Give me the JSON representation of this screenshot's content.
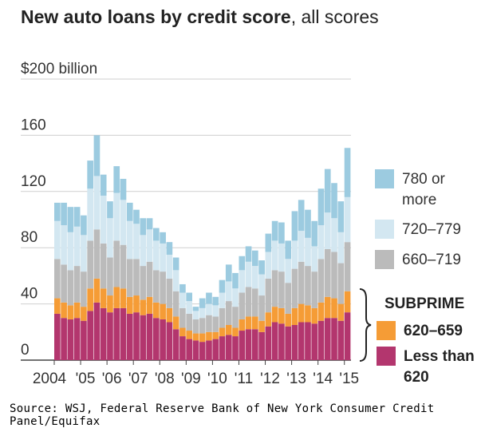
{
  "title": {
    "main": "New auto loans by credit score",
    "sub": ", all scores"
  },
  "chart_data": {
    "type": "bar",
    "stacked": true,
    "ylim": [
      0,
      200
    ],
    "yticks": [
      {
        "value": 0,
        "label": "0"
      },
      {
        "value": 40,
        "label": "40"
      },
      {
        "value": 80,
        "label": "80"
      },
      {
        "value": 120,
        "label": "120"
      },
      {
        "value": 160,
        "label": "160"
      },
      {
        "value": 200,
        "label": "$200 billion"
      }
    ],
    "xtick_labels": [
      "2004",
      "'05",
      "'06",
      "'07",
      "'08",
      "'09",
      "'10",
      "'11",
      "'12",
      "'13",
      "'14",
      "'15"
    ],
    "categories": [
      "2004Q1",
      "2004Q2",
      "2004Q3",
      "2004Q4",
      "2005Q1",
      "2005Q2",
      "2005Q3",
      "2005Q4",
      "2006Q1",
      "2006Q2",
      "2006Q3",
      "2006Q4",
      "2007Q1",
      "2007Q2",
      "2007Q3",
      "2007Q4",
      "2008Q1",
      "2008Q2",
      "2008Q3",
      "2008Q4",
      "2009Q1",
      "2009Q2",
      "2009Q3",
      "2009Q4",
      "2010Q1",
      "2010Q2",
      "2010Q3",
      "2010Q4",
      "2011Q1",
      "2011Q2",
      "2011Q3",
      "2011Q4",
      "2012Q1",
      "2012Q2",
      "2012Q3",
      "2012Q4",
      "2013Q1",
      "2013Q2",
      "2013Q3",
      "2013Q4",
      "2014Q1",
      "2014Q2",
      "2014Q3",
      "2014Q4",
      "2015Q1"
    ],
    "series": [
      {
        "name": "Less than 620",
        "color": "#b3366e",
        "values": [
          33,
          30,
          29,
          30,
          28,
          35,
          41,
          37,
          34,
          37,
          37,
          33,
          34,
          32,
          33,
          30,
          29,
          27,
          22,
          17,
          15,
          14,
          13,
          14,
          15,
          17,
          18,
          17,
          21,
          22,
          22,
          20,
          24,
          27,
          26,
          24,
          25,
          27,
          27,
          26,
          28,
          30,
          30,
          28,
          34
        ]
      },
      {
        "name": "620-659",
        "color": "#f59c36",
        "values": [
          11,
          11,
          10,
          11,
          10,
          16,
          17,
          14,
          12,
          15,
          14,
          12,
          12,
          11,
          12,
          11,
          11,
          10,
          9,
          6,
          6,
          5,
          6,
          6,
          5,
          6,
          7,
          6,
          8,
          9,
          9,
          8,
          10,
          11,
          11,
          9,
          12,
          13,
          12,
          11,
          13,
          15,
          14,
          12,
          15
        ]
      },
      {
        "name": "660-719",
        "color": "#bbbbbb",
        "values": [
          28,
          27,
          25,
          26,
          25,
          34,
          35,
          32,
          27,
          33,
          31,
          27,
          26,
          24,
          25,
          23,
          23,
          21,
          18,
          14,
          12,
          10,
          11,
          12,
          11,
          14,
          17,
          15,
          19,
          21,
          20,
          18,
          24,
          26,
          26,
          22,
          28,
          30,
          28,
          26,
          31,
          34,
          33,
          29,
          35
        ]
      },
      {
        "name": "720-779",
        "color": "#d3e7f1",
        "values": [
          27,
          28,
          27,
          28,
          26,
          37,
          38,
          34,
          28,
          34,
          32,
          27,
          25,
          22,
          23,
          21,
          20,
          17,
          15,
          11,
          9,
          6,
          7,
          8,
          8,
          11,
          14,
          13,
          16,
          18,
          16,
          15,
          19,
          21,
          20,
          17,
          20,
          22,
          20,
          18,
          24,
          26,
          24,
          22,
          32
        ]
      },
      {
        "name": "780 or more",
        "color": "#9ccbe0",
        "values": [
          13,
          16,
          18,
          14,
          14,
          20,
          29,
          15,
          12,
          19,
          15,
          13,
          10,
          12,
          8,
          9,
          8,
          9,
          9,
          6,
          6,
          3,
          7,
          8,
          6,
          9,
          12,
          11,
          10,
          11,
          11,
          10,
          13,
          14,
          15,
          13,
          21,
          22,
          20,
          18,
          26,
          31,
          25,
          22,
          35
        ]
      }
    ],
    "legend": [
      {
        "label": "780 or more",
        "color": "#9ccbe0"
      },
      {
        "label": "720–779",
        "color": "#d3e7f1"
      },
      {
        "label": "660–719",
        "color": "#bbbbbb"
      },
      {
        "label": "620–659",
        "color": "#f59c36"
      },
      {
        "label": "Less than 620",
        "color": "#b3366e"
      }
    ],
    "group_label": "SUBPRIME",
    "grid": true
  },
  "source": "Source: WSJ, Federal Reserve Bank of New York Consumer Credit Panel/Equifax"
}
